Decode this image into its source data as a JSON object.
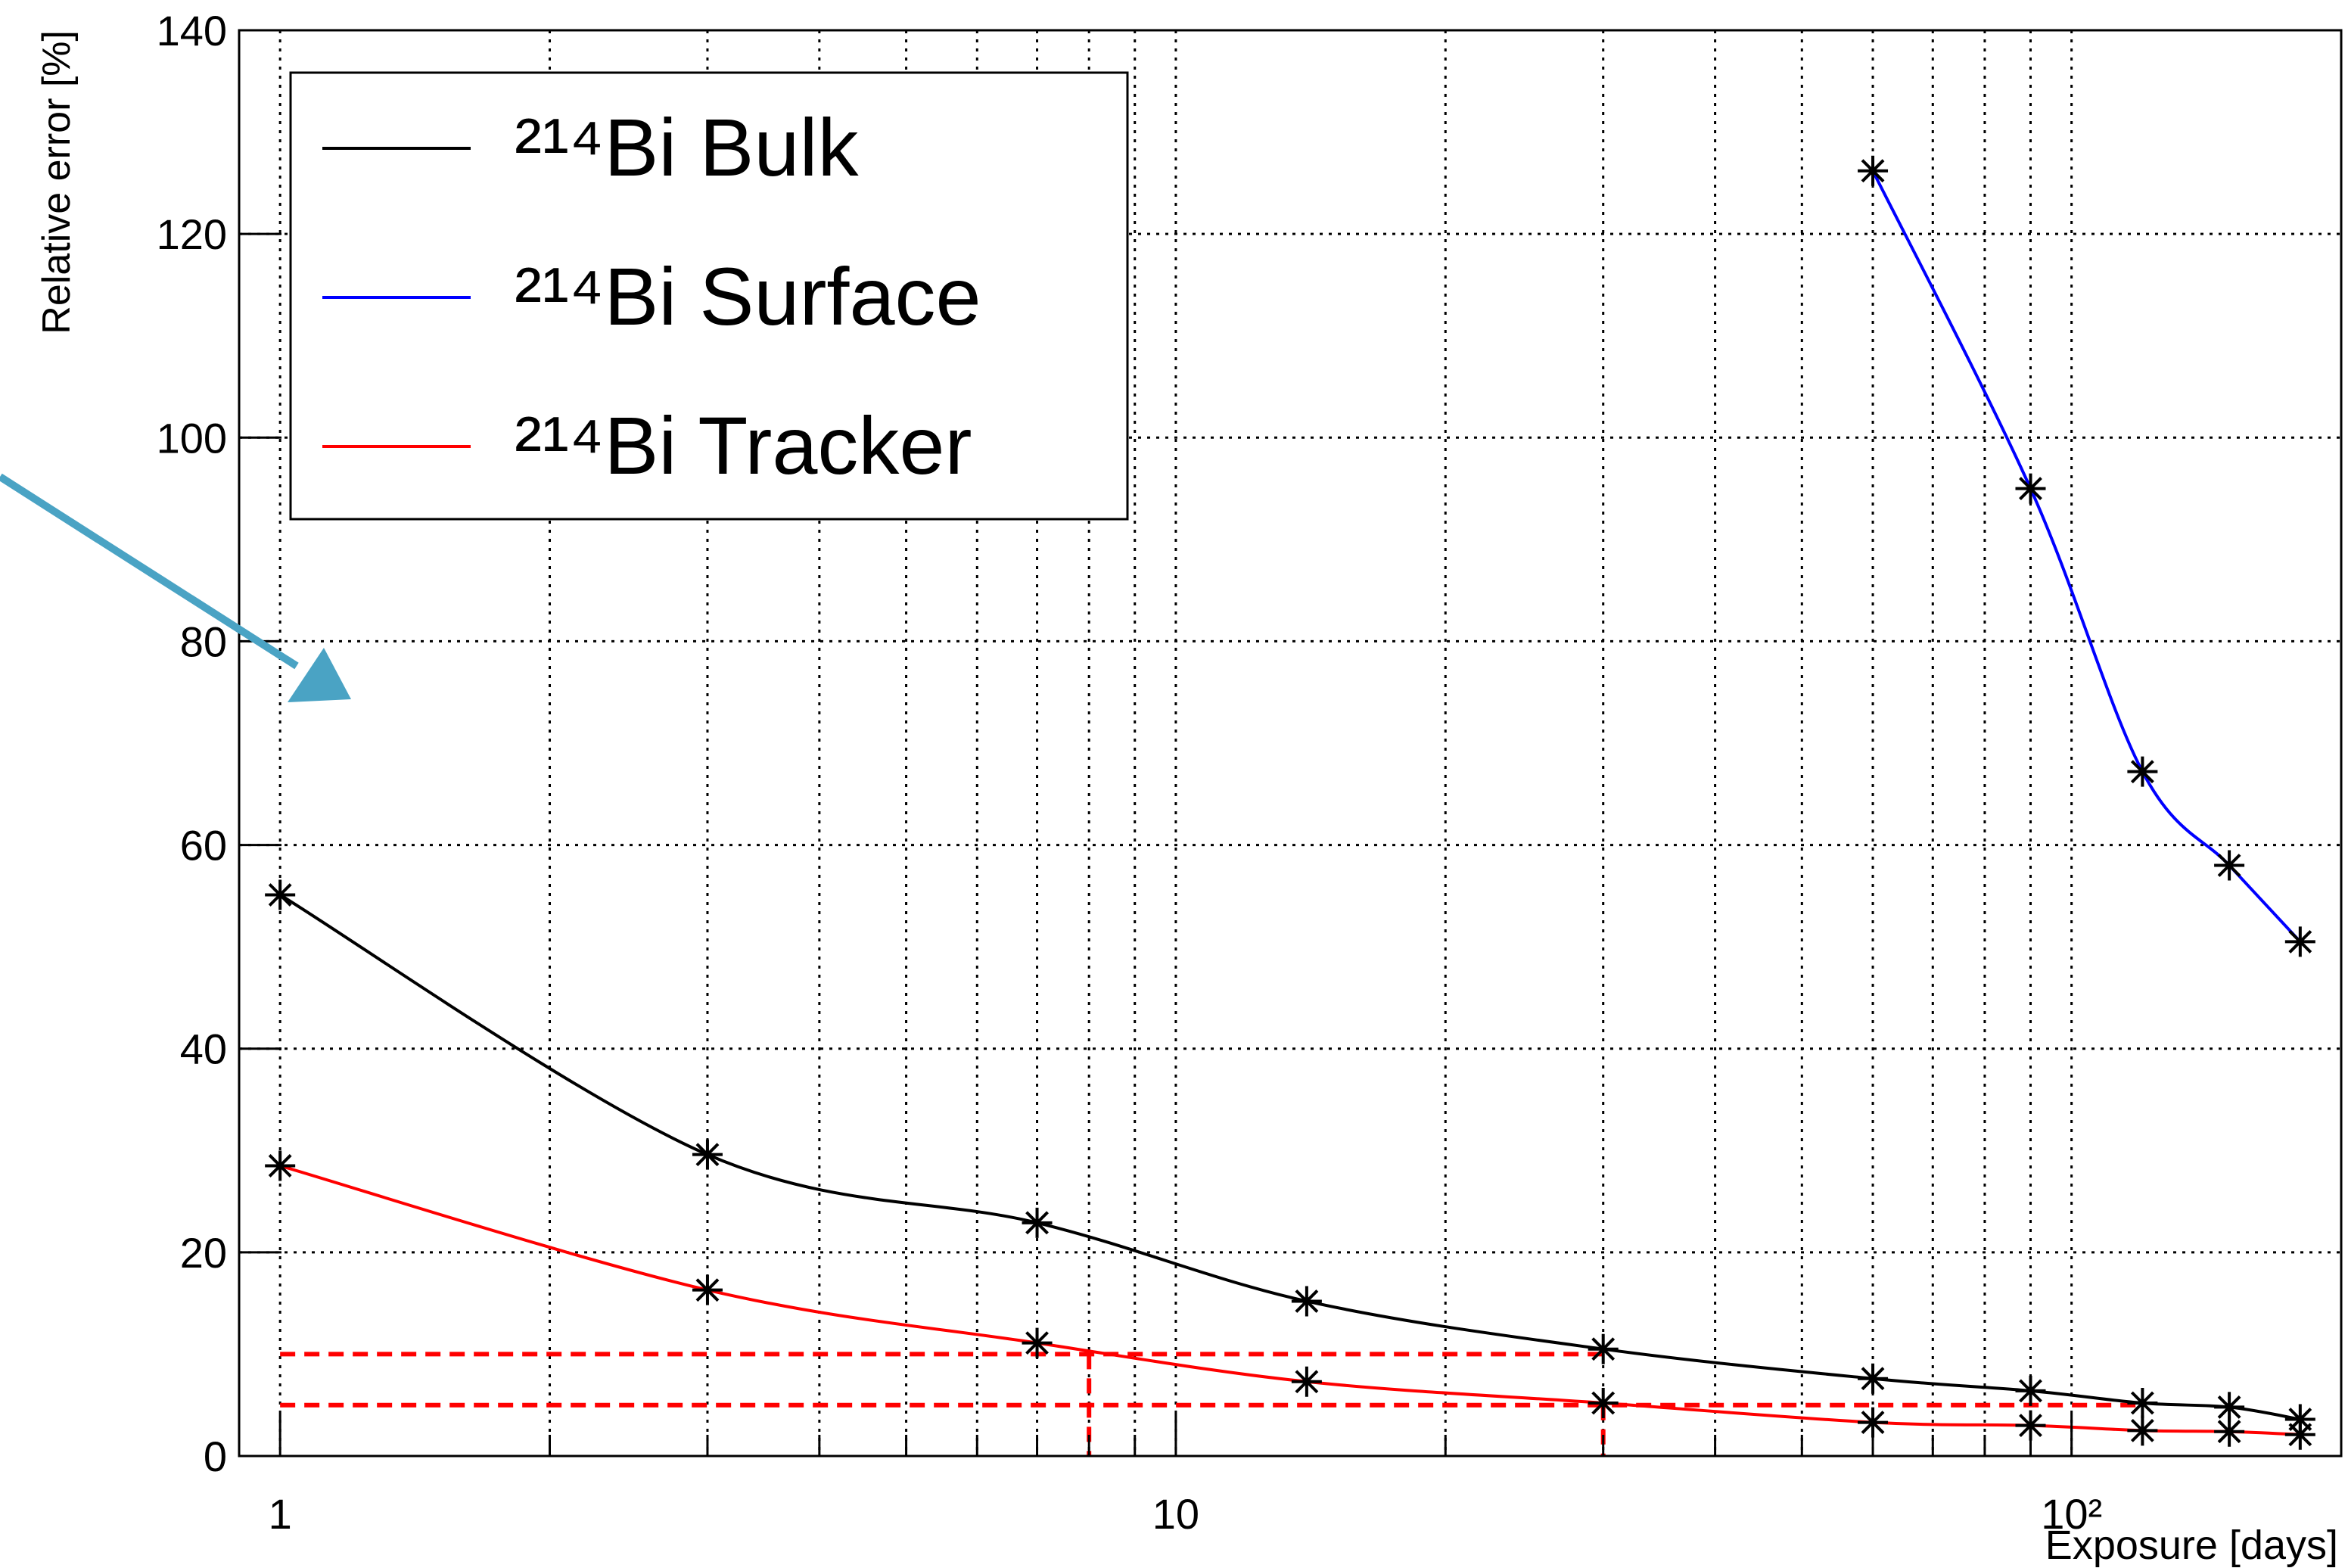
{
  "chart_data": {
    "type": "line",
    "x_label": "Exposure [days]",
    "y_label": "Relative error [%]",
    "x": [
      1,
      3,
      7,
      14,
      30,
      60,
      90,
      120,
      150,
      180
    ],
    "series": [
      {
        "name": "²¹⁴Bi Bulk",
        "color": "#000000",
        "values": [
          55.1,
          29.6,
          22.9,
          15.2,
          10.5,
          7.6,
          6.4,
          5.2,
          4.8,
          3.6
        ]
      },
      {
        "name": "²¹⁴Bi Surface",
        "color": "#0000ff",
        "values": [
          null,
          null,
          null,
          null,
          null,
          126.2,
          95,
          67.2,
          58,
          50.5
        ]
      },
      {
        "name": "²¹⁴Bi Tracker",
        "color": "#ff0000",
        "values": [
          28.5,
          16.3,
          11.1,
          7.3,
          5.2,
          3.3,
          3.0,
          2.5,
          2.4,
          2.1
        ]
      }
    ],
    "xlim": [
      0.9,
      200
    ],
    "ylim": [
      0,
      140
    ],
    "log_x": true,
    "grid": true,
    "xticks": [
      1,
      10,
      {
        "value": 100,
        "label": "10²"
      }
    ],
    "xminor_ticks": [
      2,
      3,
      4,
      5,
      6,
      7,
      8,
      9,
      20,
      30,
      40,
      50,
      60,
      70,
      80,
      90,
      200
    ],
    "yticks": [
      0,
      20,
      40,
      60,
      80,
      100,
      120,
      140
    ],
    "legend": "top-left",
    "guides": {
      "color": "#ff0000",
      "hlines": [
        {
          "y": 10,
          "xmin": 1,
          "xmax": 30
        },
        {
          "y": 5,
          "xmin": 1,
          "xmax": 120
        }
      ],
      "vlines": [
        {
          "x": 8,
          "ymax": 10
        },
        {
          "x": 30,
          "ymax": 5
        }
      ]
    }
  }
}
